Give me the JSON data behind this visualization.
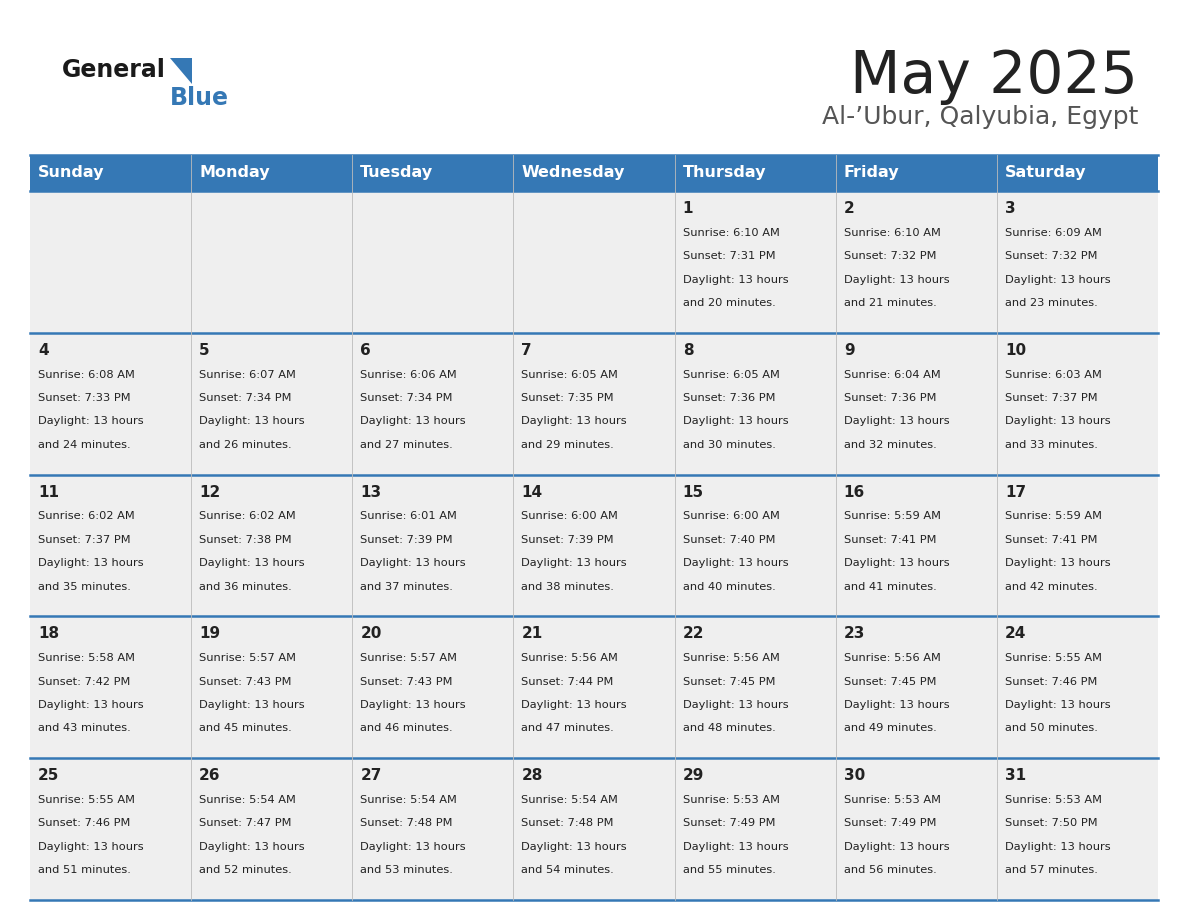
{
  "title": "May 2025",
  "subtitle": "Al-’Ubur, Qalyubia, Egypt",
  "days_of_week": [
    "Sunday",
    "Monday",
    "Tuesday",
    "Wednesday",
    "Thursday",
    "Friday",
    "Saturday"
  ],
  "header_bg": "#3578b5",
  "header_text": "#ffffff",
  "row_bg": "#efefef",
  "cell_text_color": "#222222",
  "day_num_color": "#222222",
  "border_color": "#3578b5",
  "title_color": "#222222",
  "subtitle_color": "#555555",
  "logo_general_color": "#1a1a1a",
  "logo_blue_color": "#3578b5",
  "calendar_data": [
    [
      null,
      null,
      null,
      null,
      {
        "day": 1,
        "sunrise": "6:10 AM",
        "sunset": "7:31 PM",
        "daylight": "13 hours and 20 minutes"
      },
      {
        "day": 2,
        "sunrise": "6:10 AM",
        "sunset": "7:32 PM",
        "daylight": "13 hours and 21 minutes"
      },
      {
        "day": 3,
        "sunrise": "6:09 AM",
        "sunset": "7:32 PM",
        "daylight": "13 hours and 23 minutes"
      }
    ],
    [
      {
        "day": 4,
        "sunrise": "6:08 AM",
        "sunset": "7:33 PM",
        "daylight": "13 hours and 24 minutes"
      },
      {
        "day": 5,
        "sunrise": "6:07 AM",
        "sunset": "7:34 PM",
        "daylight": "13 hours and 26 minutes"
      },
      {
        "day": 6,
        "sunrise": "6:06 AM",
        "sunset": "7:34 PM",
        "daylight": "13 hours and 27 minutes"
      },
      {
        "day": 7,
        "sunrise": "6:05 AM",
        "sunset": "7:35 PM",
        "daylight": "13 hours and 29 minutes"
      },
      {
        "day": 8,
        "sunrise": "6:05 AM",
        "sunset": "7:36 PM",
        "daylight": "13 hours and 30 minutes"
      },
      {
        "day": 9,
        "sunrise": "6:04 AM",
        "sunset": "7:36 PM",
        "daylight": "13 hours and 32 minutes"
      },
      {
        "day": 10,
        "sunrise": "6:03 AM",
        "sunset": "7:37 PM",
        "daylight": "13 hours and 33 minutes"
      }
    ],
    [
      {
        "day": 11,
        "sunrise": "6:02 AM",
        "sunset": "7:37 PM",
        "daylight": "13 hours and 35 minutes"
      },
      {
        "day": 12,
        "sunrise": "6:02 AM",
        "sunset": "7:38 PM",
        "daylight": "13 hours and 36 minutes"
      },
      {
        "day": 13,
        "sunrise": "6:01 AM",
        "sunset": "7:39 PM",
        "daylight": "13 hours and 37 minutes"
      },
      {
        "day": 14,
        "sunrise": "6:00 AM",
        "sunset": "7:39 PM",
        "daylight": "13 hours and 38 minutes"
      },
      {
        "day": 15,
        "sunrise": "6:00 AM",
        "sunset": "7:40 PM",
        "daylight": "13 hours and 40 minutes"
      },
      {
        "day": 16,
        "sunrise": "5:59 AM",
        "sunset": "7:41 PM",
        "daylight": "13 hours and 41 minutes"
      },
      {
        "day": 17,
        "sunrise": "5:59 AM",
        "sunset": "7:41 PM",
        "daylight": "13 hours and 42 minutes"
      }
    ],
    [
      {
        "day": 18,
        "sunrise": "5:58 AM",
        "sunset": "7:42 PM",
        "daylight": "13 hours and 43 minutes"
      },
      {
        "day": 19,
        "sunrise": "5:57 AM",
        "sunset": "7:43 PM",
        "daylight": "13 hours and 45 minutes"
      },
      {
        "day": 20,
        "sunrise": "5:57 AM",
        "sunset": "7:43 PM",
        "daylight": "13 hours and 46 minutes"
      },
      {
        "day": 21,
        "sunrise": "5:56 AM",
        "sunset": "7:44 PM",
        "daylight": "13 hours and 47 minutes"
      },
      {
        "day": 22,
        "sunrise": "5:56 AM",
        "sunset": "7:45 PM",
        "daylight": "13 hours and 48 minutes"
      },
      {
        "day": 23,
        "sunrise": "5:56 AM",
        "sunset": "7:45 PM",
        "daylight": "13 hours and 49 minutes"
      },
      {
        "day": 24,
        "sunrise": "5:55 AM",
        "sunset": "7:46 PM",
        "daylight": "13 hours and 50 minutes"
      }
    ],
    [
      {
        "day": 25,
        "sunrise": "5:55 AM",
        "sunset": "7:46 PM",
        "daylight": "13 hours and 51 minutes"
      },
      {
        "day": 26,
        "sunrise": "5:54 AM",
        "sunset": "7:47 PM",
        "daylight": "13 hours and 52 minutes"
      },
      {
        "day": 27,
        "sunrise": "5:54 AM",
        "sunset": "7:48 PM",
        "daylight": "13 hours and 53 minutes"
      },
      {
        "day": 28,
        "sunrise": "5:54 AM",
        "sunset": "7:48 PM",
        "daylight": "13 hours and 54 minutes"
      },
      {
        "day": 29,
        "sunrise": "5:53 AM",
        "sunset": "7:49 PM",
        "daylight": "13 hours and 55 minutes"
      },
      {
        "day": 30,
        "sunrise": "5:53 AM",
        "sunset": "7:49 PM",
        "daylight": "13 hours and 56 minutes"
      },
      {
        "day": 31,
        "sunrise": "5:53 AM",
        "sunset": "7:50 PM",
        "daylight": "13 hours and 57 minutes"
      }
    ]
  ]
}
